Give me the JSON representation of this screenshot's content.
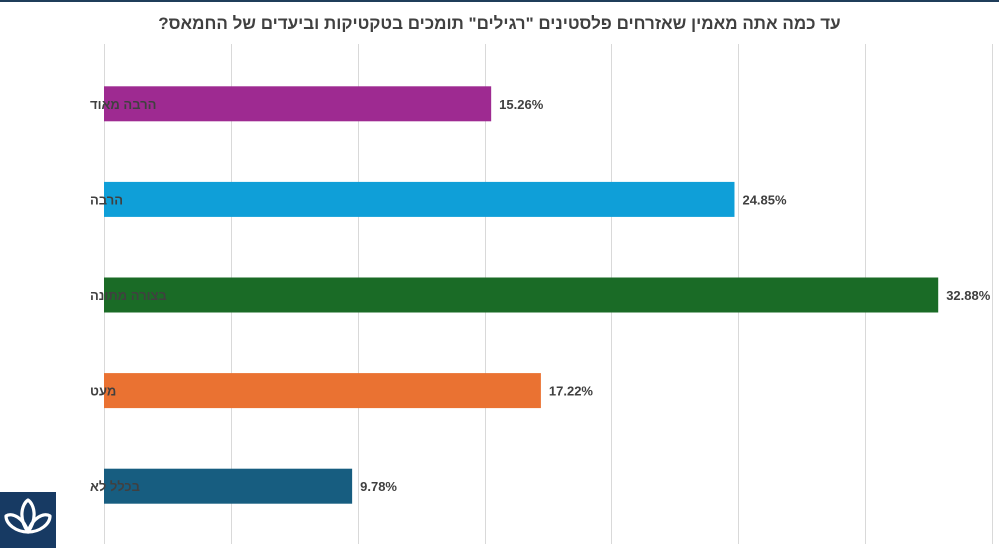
{
  "chart_data": {
    "type": "bar",
    "orientation": "horizontal",
    "title": "עד כמה אתה מאמין שאזרחים פלסטינים \"רגילים\" תומכים בטקטיקות וביעדים של החמאס?",
    "categories": [
      "הרבה מאוד",
      "הרבה",
      "בצורה מתונה",
      "מעט",
      "בכלל לא"
    ],
    "values": [
      15.26,
      24.85,
      32.88,
      17.22,
      9.78
    ],
    "value_labels": [
      "15.26%",
      "24.85%",
      "32.88%",
      "17.22%",
      "9.78%"
    ],
    "colors": [
      "#9e2a91",
      "#0f9fd8",
      "#1a6b26",
      "#ea7232",
      "#175d80"
    ],
    "xlim": [
      0,
      35
    ],
    "grid": true,
    "legend": "none"
  },
  "logo": {
    "icon": "trefoil-logo-icon",
    "color": "#173a63"
  }
}
